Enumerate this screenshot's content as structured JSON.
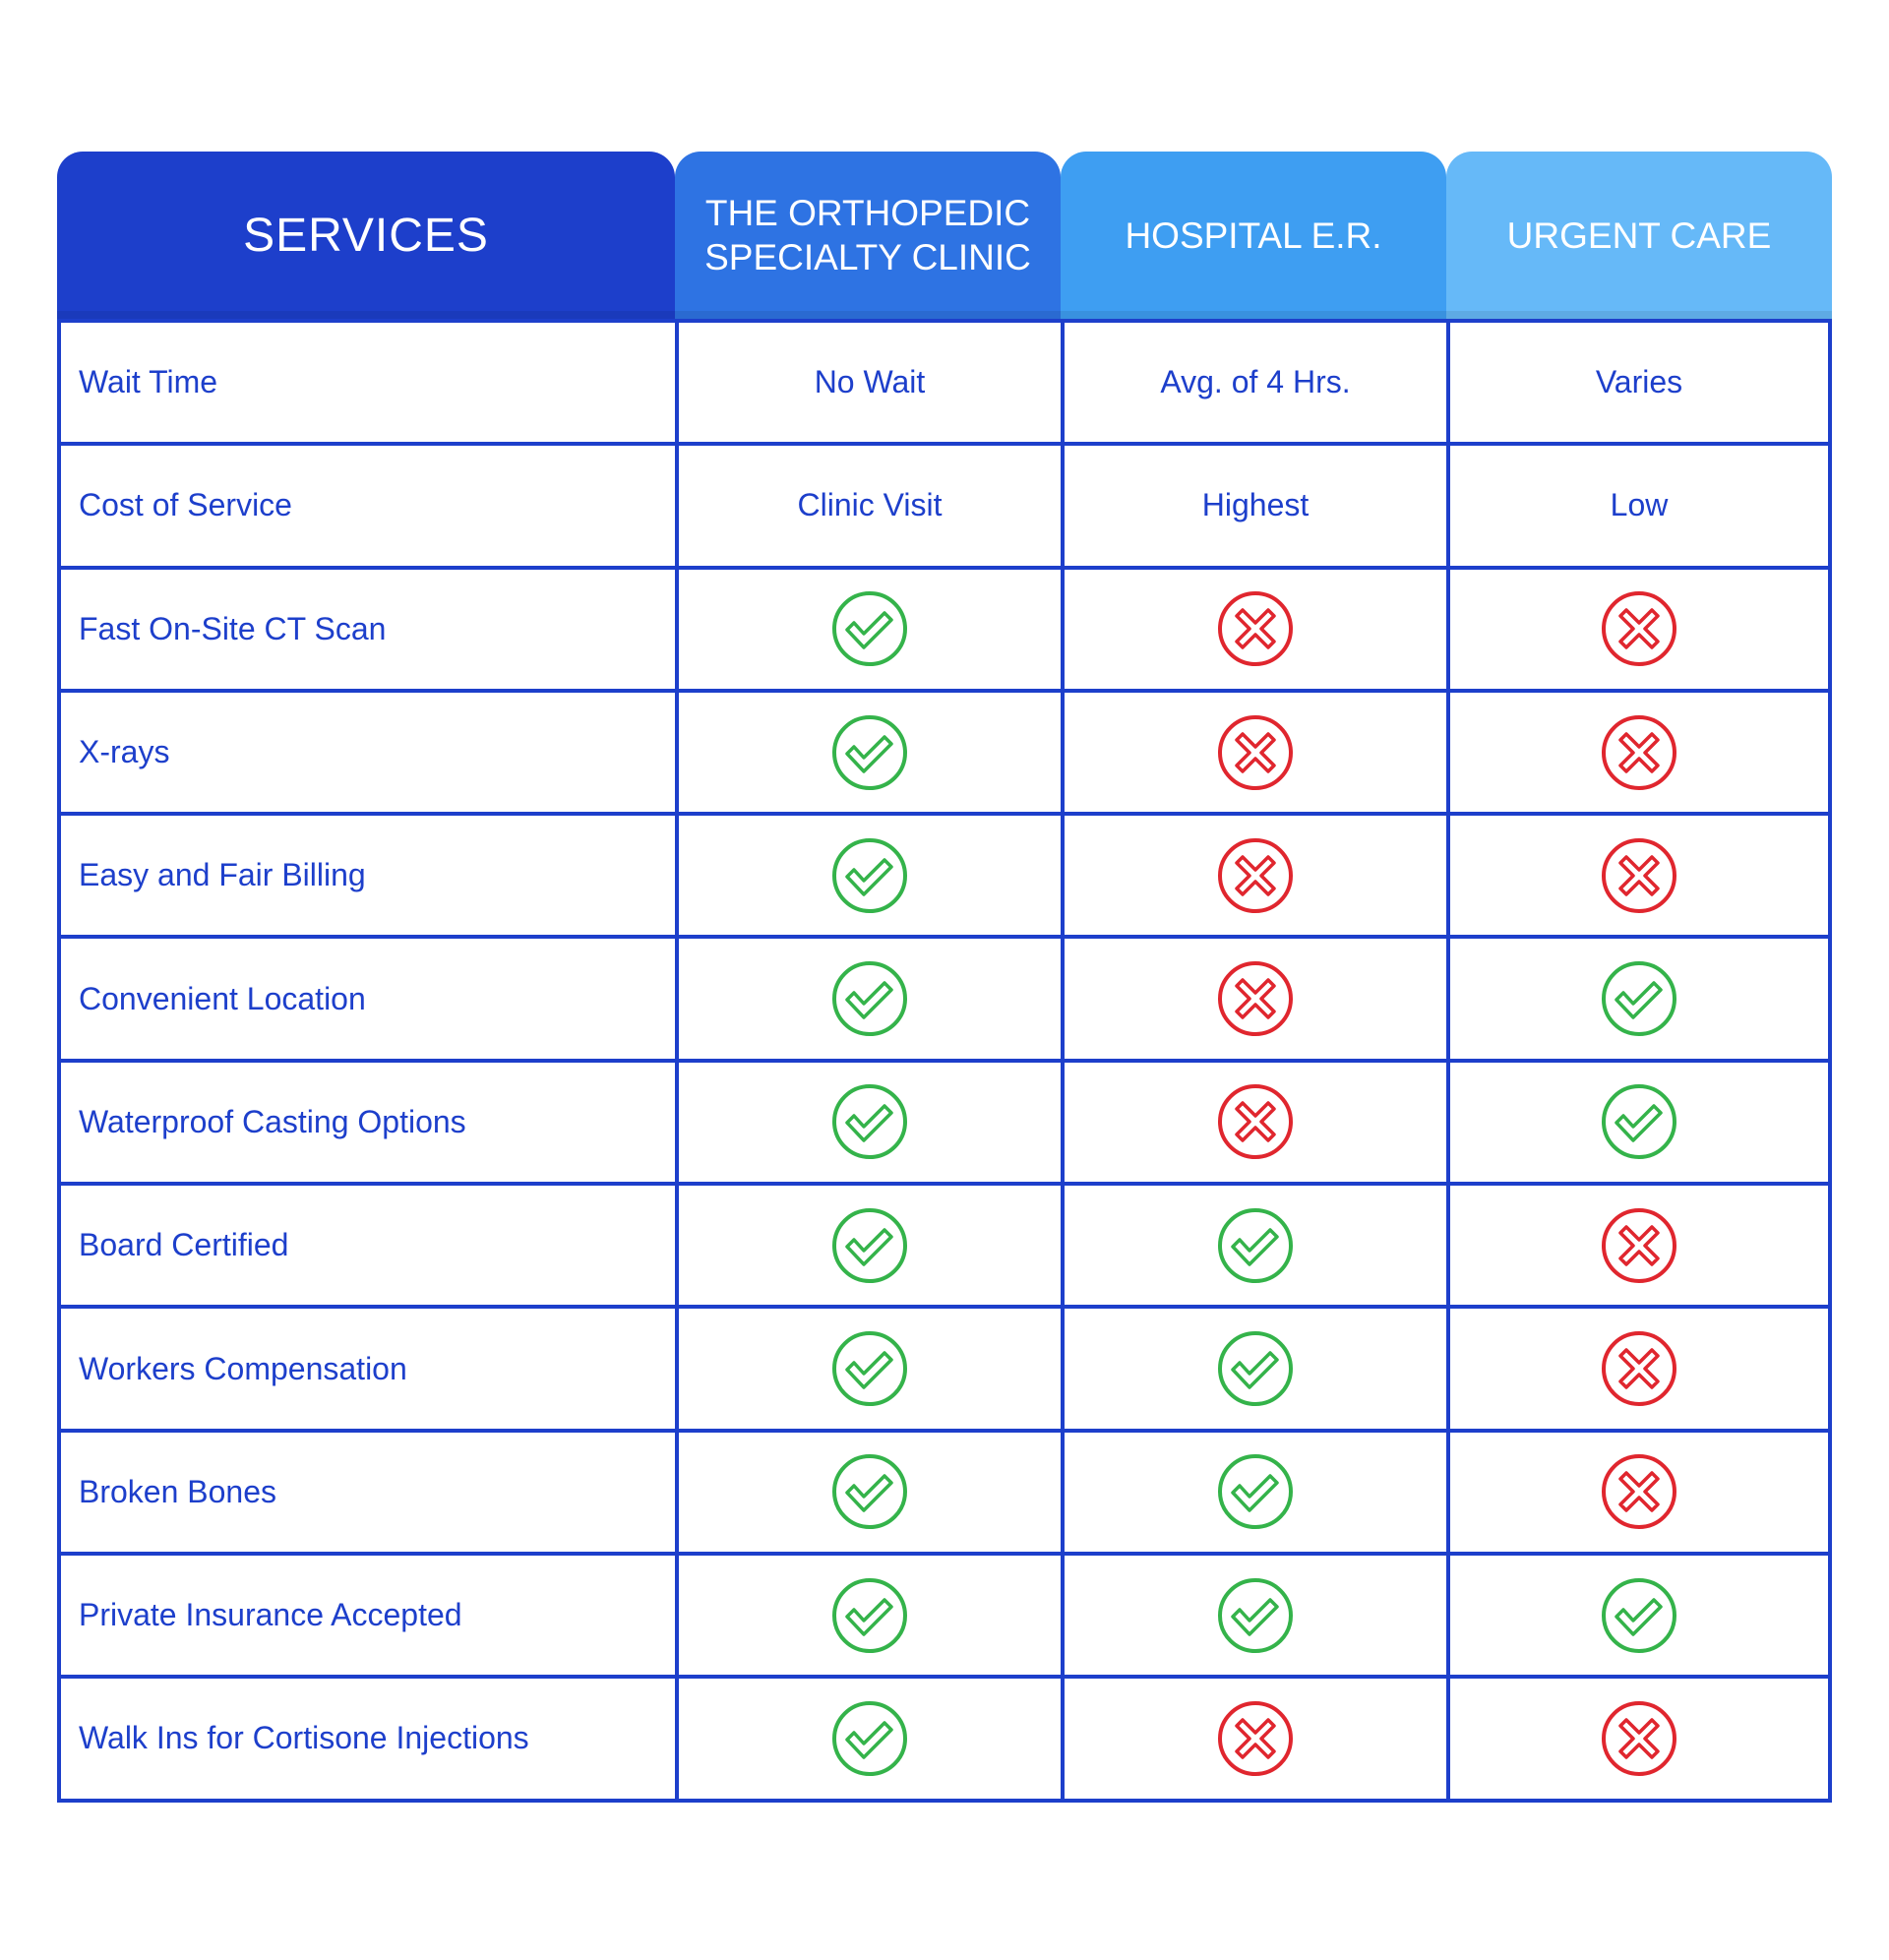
{
  "header": {
    "services": "SERVICES",
    "col1": "THE ORTHOPEDIC SPECIALTY CLINIC",
    "col2": "HOSPITAL E.R.",
    "col3": "URGENT CARE"
  },
  "colors": {
    "brand_dark": "#1d3fcb",
    "col1_bg": "#2e73e3",
    "col2_bg": "#3e9ef2",
    "col3_bg": "#66b9f8",
    "check": "#34b34a",
    "cross": "#e0262e"
  },
  "rows": [
    {
      "service": "Wait Time",
      "values": [
        "No Wait",
        "Avg. of 4 Hrs.",
        "Varies"
      ]
    },
    {
      "service": "Cost of Service",
      "values": [
        "Clinic Visit",
        "Highest",
        "Low"
      ]
    },
    {
      "service": "Fast On-Site CT Scan",
      "values": [
        "check",
        "cross",
        "cross"
      ]
    },
    {
      "service": "X-rays",
      "values": [
        "check",
        "cross",
        "cross"
      ]
    },
    {
      "service": "Easy and Fair Billing",
      "values": [
        "check",
        "cross",
        "cross"
      ]
    },
    {
      "service": "Convenient Location",
      "values": [
        "check",
        "cross",
        "check"
      ]
    },
    {
      "service": "Waterproof Casting Options",
      "values": [
        "check",
        "cross",
        "check"
      ]
    },
    {
      "service": "Board Certified",
      "values": [
        "check",
        "check",
        "cross"
      ]
    },
    {
      "service": "Workers Compensation",
      "values": [
        "check",
        "check",
        "cross"
      ]
    },
    {
      "service": "Broken Bones",
      "values": [
        "check",
        "check",
        "cross"
      ]
    },
    {
      "service": "Private Insurance Accepted",
      "values": [
        "check",
        "check",
        "check"
      ]
    },
    {
      "service": "Walk Ins for Cortisone Injections",
      "values": [
        "check",
        "cross",
        "cross"
      ]
    }
  ]
}
